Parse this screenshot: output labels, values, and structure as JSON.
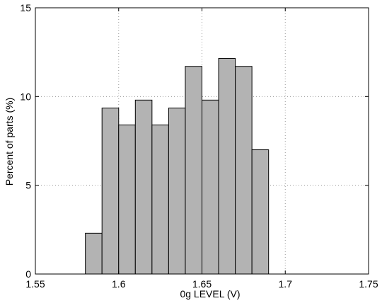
{
  "chart_data": {
    "type": "bar",
    "title": "",
    "xlabel": "0g LEVEL (V)",
    "ylabel": "Percent of parts (%)",
    "xlim": [
      1.55,
      1.75
    ],
    "ylim": [
      0,
      15
    ],
    "xticks": [
      1.55,
      1.6,
      1.65,
      1.7,
      1.75
    ],
    "xtick_labels": [
      "1.55",
      "1.6",
      "1.65",
      "1.7",
      "1.75"
    ],
    "yticks": [
      0,
      5,
      10,
      15
    ],
    "ytick_labels": [
      "0",
      "5",
      "10",
      "15"
    ],
    "grid": true,
    "bin_width": 0.01,
    "bins": [
      {
        "start": 1.58,
        "end": 1.59,
        "value": 2.3
      },
      {
        "start": 1.59,
        "end": 1.6,
        "value": 9.35
      },
      {
        "start": 1.6,
        "end": 1.61,
        "value": 8.4
      },
      {
        "start": 1.61,
        "end": 1.62,
        "value": 9.8
      },
      {
        "start": 1.62,
        "end": 1.63,
        "value": 8.4
      },
      {
        "start": 1.63,
        "end": 1.64,
        "value": 9.35
      },
      {
        "start": 1.64,
        "end": 1.65,
        "value": 11.7
      },
      {
        "start": 1.65,
        "end": 1.66,
        "value": 9.8
      },
      {
        "start": 1.66,
        "end": 1.67,
        "value": 12.15
      },
      {
        "start": 1.67,
        "end": 1.68,
        "value": 11.7
      },
      {
        "start": 1.68,
        "end": 1.69,
        "value": 7.0
      }
    ],
    "colors": {
      "bar_fill": "#b3b3b3",
      "bar_edge": "#000000",
      "grid": "#9a9a9a",
      "axis": "#000000"
    }
  }
}
